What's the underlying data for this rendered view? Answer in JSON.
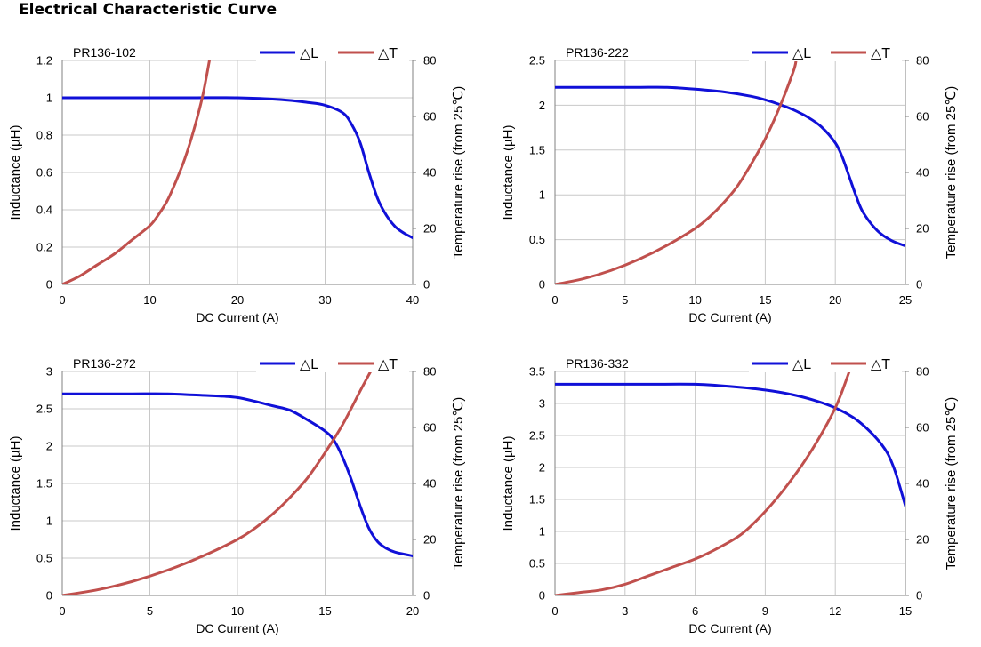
{
  "page": {
    "title": "Electrical Characteristic Curve"
  },
  "colors": {
    "inductance": "#1010d8",
    "temperature": "#c0504d",
    "grid": "#c8c8c8",
    "axis": "#808080"
  },
  "chart_data": [
    {
      "type": "line",
      "title": "PR136-102",
      "xlabel": "DC Current (A)",
      "ylabel": "Inductance (µH)",
      "y2label": "Temperature rise (from 25℃)",
      "xlim": [
        0,
        40
      ],
      "xticks": [
        0,
        10,
        20,
        30,
        40
      ],
      "xtick_labels": [
        "0",
        "10",
        "20",
        "30",
        "40"
      ],
      "ylim": [
        0,
        1.2
      ],
      "yticks": [
        0,
        0.2,
        0.4,
        0.6,
        0.8,
        1,
        1.2
      ],
      "ytick_labels": [
        "0",
        "0.2",
        "0.4",
        "0.6",
        "0.8",
        "1",
        "1.2"
      ],
      "y2lim": [
        0,
        80
      ],
      "y2ticks": [
        0,
        20,
        40,
        60,
        80
      ],
      "y2tick_labels": [
        "0",
        "20",
        "40",
        "60",
        "80"
      ],
      "grid": true,
      "legend": "top-right",
      "series": [
        {
          "name": "△L",
          "axis": "left",
          "x": [
            0,
            5,
            10,
            15,
            20,
            25,
            28,
            30,
            32,
            33,
            34,
            35,
            36,
            37,
            38,
            39,
            40
          ],
          "y": [
            1.0,
            1.0,
            1.0,
            1.0,
            1.0,
            0.99,
            0.975,
            0.96,
            0.92,
            0.86,
            0.76,
            0.6,
            0.46,
            0.37,
            0.31,
            0.275,
            0.25
          ]
        },
        {
          "name": "△T",
          "axis": "right",
          "x": [
            0,
            2,
            4,
            6,
            8,
            10,
            11,
            12,
            13,
            14,
            15,
            16,
            16.8
          ],
          "y": [
            0,
            3,
            7,
            11,
            16,
            21,
            25,
            30,
            37,
            45,
            55,
            67,
            80
          ]
        }
      ]
    },
    {
      "type": "line",
      "title": "PR136-222",
      "xlabel": "DC Current (A)",
      "ylabel": "Inductance (µH)",
      "y2label": "Temperature rise (from 25℃)",
      "xlim": [
        0,
        25
      ],
      "xticks": [
        0,
        5,
        10,
        15,
        20,
        25
      ],
      "xtick_labels": [
        "0",
        "5",
        "10",
        "15",
        "20",
        "25"
      ],
      "ylim": [
        0,
        2.5
      ],
      "yticks": [
        0,
        0.5,
        1,
        1.5,
        2,
        2.5
      ],
      "ytick_labels": [
        "0",
        "0.5",
        "1",
        "1.5",
        "2",
        "2.5"
      ],
      "y2lim": [
        0,
        80
      ],
      "y2ticks": [
        0,
        20,
        40,
        60,
        80
      ],
      "y2tick_labels": [
        "0",
        "20",
        "40",
        "60",
        "80"
      ],
      "grid": true,
      "legend": "top-right",
      "series": [
        {
          "name": "△L",
          "axis": "left",
          "x": [
            0,
            2,
            4,
            6,
            8,
            10,
            12,
            14,
            15,
            16,
            17,
            18,
            19,
            20,
            20.5,
            21,
            21.5,
            22,
            23,
            24,
            25
          ],
          "y": [
            2.2,
            2.2,
            2.2,
            2.2,
            2.2,
            2.18,
            2.15,
            2.1,
            2.06,
            2.01,
            1.95,
            1.87,
            1.76,
            1.58,
            1.42,
            1.2,
            0.98,
            0.8,
            0.6,
            0.49,
            0.43
          ]
        },
        {
          "name": "△T",
          "axis": "right",
          "x": [
            0,
            2,
            4,
            6,
            8,
            10,
            11,
            12,
            13,
            14,
            15,
            16,
            17,
            17.2
          ],
          "y": [
            0,
            2,
            5,
            9,
            14,
            20,
            24,
            29,
            35,
            43,
            52,
            63,
            76,
            80
          ]
        }
      ]
    },
    {
      "type": "line",
      "title": "PR136-272",
      "xlabel": "DC Current (A)",
      "ylabel": "Inductance (µH)",
      "y2label": "Temperature rise (from 25℃)",
      "xlim": [
        0,
        20
      ],
      "xticks": [
        0,
        5,
        10,
        15,
        20
      ],
      "xtick_labels": [
        "0",
        "5",
        "10",
        "15",
        "20"
      ],
      "ylim": [
        0,
        3
      ],
      "yticks": [
        0,
        0.5,
        1,
        1.5,
        2,
        2.5,
        3
      ],
      "ytick_labels": [
        "0",
        "0.5",
        "1",
        "1.5",
        "2",
        "2.5",
        "3"
      ],
      "y2lim": [
        0,
        80
      ],
      "y2ticks": [
        0,
        20,
        40,
        60,
        80
      ],
      "y2tick_labels": [
        "0",
        "20",
        "40",
        "60",
        "80"
      ],
      "grid": true,
      "legend": "top-right",
      "series": [
        {
          "name": "△L",
          "axis": "left",
          "x": [
            0,
            2,
            4,
            6,
            8,
            9,
            10,
            11,
            12,
            13,
            14,
            15,
            15.5,
            16,
            16.5,
            17,
            17.5,
            18,
            18.5,
            19,
            20
          ],
          "y": [
            2.7,
            2.7,
            2.7,
            2.7,
            2.68,
            2.67,
            2.65,
            2.6,
            2.54,
            2.48,
            2.35,
            2.2,
            2.08,
            1.85,
            1.55,
            1.2,
            0.9,
            0.72,
            0.63,
            0.58,
            0.53
          ]
        },
        {
          "name": "△T",
          "axis": "right",
          "x": [
            0,
            2,
            4,
            6,
            8,
            10,
            11,
            12,
            13,
            14,
            15,
            16,
            17,
            17.6
          ],
          "y": [
            0,
            2,
            5,
            9,
            14,
            20,
            24,
            29,
            35,
            42,
            51,
            61,
            73,
            80
          ]
        }
      ]
    },
    {
      "type": "line",
      "title": "PR136-332",
      "xlabel": "DC Current (A)",
      "ylabel": "Inductance (µH)",
      "y2label": "Temperature rise (from 25℃)",
      "xlim": [
        0,
        15
      ],
      "xticks": [
        0,
        3,
        6,
        9,
        12,
        15
      ],
      "xtick_labels": [
        "0",
        "3",
        "6",
        "9",
        "12",
        "15"
      ],
      "ylim": [
        0,
        3.5
      ],
      "yticks": [
        0,
        0.5,
        1,
        1.5,
        2,
        2.5,
        3,
        3.5
      ],
      "ytick_labels": [
        "0",
        "0.5",
        "1",
        "1.5",
        "2",
        "2.5",
        "3",
        "3.5"
      ],
      "y2lim": [
        0,
        80
      ],
      "y2ticks": [
        0,
        20,
        40,
        60,
        80
      ],
      "y2tick_labels": [
        "0",
        "20",
        "40",
        "60",
        "80"
      ],
      "grid": true,
      "legend": "top-right",
      "series": [
        {
          "name": "△L",
          "axis": "left",
          "x": [
            0,
            2,
            4,
            6,
            7,
            8,
            9,
            10,
            11,
            12,
            13,
            14,
            14.5,
            15
          ],
          "y": [
            3.3,
            3.3,
            3.3,
            3.3,
            3.28,
            3.25,
            3.21,
            3.15,
            3.06,
            2.93,
            2.72,
            2.35,
            2.0,
            1.4
          ]
        },
        {
          "name": "△T",
          "axis": "right",
          "x": [
            0,
            1,
            2,
            3,
            4,
            5,
            6,
            7,
            8,
            9,
            10,
            11,
            12,
            12.6
          ],
          "y": [
            0,
            1,
            2,
            4,
            7,
            10,
            13,
            17,
            22,
            30,
            40,
            52,
            67,
            80
          ]
        }
      ]
    }
  ]
}
